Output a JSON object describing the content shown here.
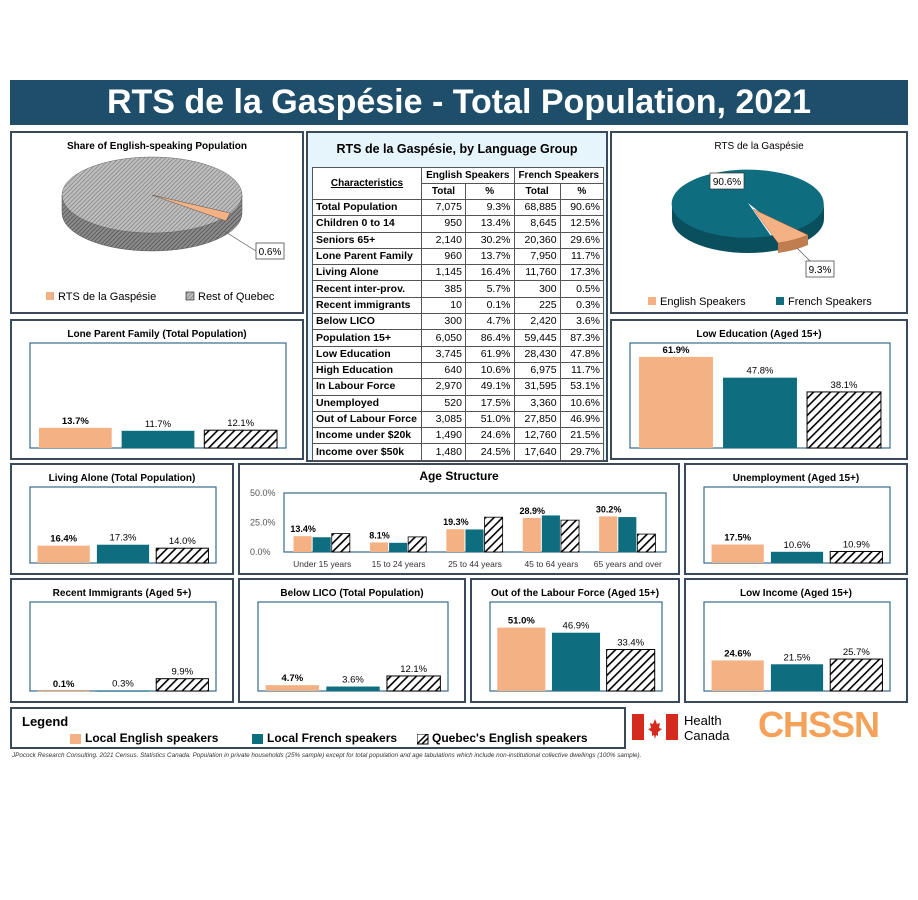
{
  "title": "RTS de la Gaspésie - Total Population, 2021",
  "colors": {
    "english": "#f4b183",
    "french": "#0e6e80",
    "quebec": "hatch",
    "banner": "#1f4e6b"
  },
  "pie_left": {
    "title": "Share of English-speaking Population",
    "label": "0.6%",
    "legend": [
      "RTS de la Gaspésie",
      "Rest of Quebec"
    ]
  },
  "pie_right": {
    "title": "RTS de la Gaspésie",
    "label_french": "90.6%",
    "label_english": "9.3%",
    "legend": [
      "English Speakers",
      "French Speakers"
    ]
  },
  "table": {
    "title": "RTS de la Gaspésie, by Language Group",
    "col_characteristics": "Characteristics",
    "col_english": "English Speakers",
    "col_french": "French Speakers",
    "col_total": "Total",
    "col_pct": "%",
    "rows": [
      [
        "Total Population",
        "7,075",
        "9.3%",
        "68,885",
        "90.6%"
      ],
      [
        "Children 0 to 14",
        "950",
        "13.4%",
        "8,645",
        "12.5%"
      ],
      [
        "Seniors 65+",
        "2,140",
        "30.2%",
        "20,360",
        "29.6%"
      ],
      [
        "Lone Parent Family",
        "960",
        "13.7%",
        "7,950",
        "11.7%"
      ],
      [
        "Living Alone",
        "1,145",
        "16.4%",
        "11,760",
        "17.3%"
      ],
      [
        "Recent inter-prov.",
        "385",
        "5.7%",
        "300",
        "0.5%"
      ],
      [
        "Recent immigrants",
        "10",
        "0.1%",
        "225",
        "0.3%"
      ],
      [
        "Below LICO",
        "300",
        "4.7%",
        "2,420",
        "3.6%"
      ],
      [
        "Population 15+",
        "6,050",
        "86.4%",
        "59,445",
        "87.3%"
      ],
      [
        "Low Education",
        "3,745",
        "61.9%",
        "28,430",
        "47.8%"
      ],
      [
        "High Education",
        "640",
        "10.6%",
        "6,975",
        "11.7%"
      ],
      [
        "In Labour Force",
        "2,970",
        "49.1%",
        "31,595",
        "53.1%"
      ],
      [
        "Unemployed",
        "520",
        "17.5%",
        "3,360",
        "10.6%"
      ],
      [
        "Out of Labour Force",
        "3,085",
        "51.0%",
        "27,850",
        "46.9%"
      ],
      [
        "Income under $20k",
        "1,490",
        "24.6%",
        "12,760",
        "21.5%"
      ],
      [
        "Income over $50k",
        "1,480",
        "24.5%",
        "17,640",
        "29.7%"
      ]
    ]
  },
  "age": {
    "title": "Age Structure",
    "ticks": [
      "50.0%",
      "25.0%",
      "0.0%"
    ]
  },
  "legend": {
    "title": "Legend",
    "items": [
      "Local English speakers",
      "Local French speakers",
      "Quebec's English speakers"
    ]
  },
  "logos": {
    "health_line1": "Health",
    "health_line2": "Canada",
    "chssn": "CHSSN"
  },
  "footnote": "JPocock Research Consulting. 2021 Census. Statistics Canada. Population in private households (25% sample) except for total population and age tabulations which include non-institutional collective dwellings (100% sample).",
  "chart_data": [
    {
      "type": "pie",
      "title": "Share of English-speaking Population",
      "categories": [
        "RTS de la Gaspésie",
        "Rest of Quebec"
      ],
      "values": [
        0.6,
        99.4
      ]
    },
    {
      "type": "pie",
      "title": "RTS de la Gaspésie",
      "categories": [
        "English Speakers",
        "French Speakers"
      ],
      "values": [
        9.3,
        90.6
      ]
    },
    {
      "type": "bar",
      "title": "Lone Parent Family (Total Population)",
      "series": [
        {
          "name": "Local English speakers",
          "values": [
            13.7
          ],
          "label": "13.7%"
        },
        {
          "name": "Local French speakers",
          "values": [
            11.7
          ],
          "label": "11.7%"
        },
        {
          "name": "Quebec's English speakers",
          "values": [
            12.1
          ],
          "label": "12.1%"
        }
      ],
      "ymax": 70
    },
    {
      "type": "bar",
      "title": "Low Education (Aged 15+)",
      "series": [
        {
          "name": "Local English speakers",
          "values": [
            61.9
          ],
          "label": "61.9%"
        },
        {
          "name": "Local French speakers",
          "values": [
            47.8
          ],
          "label": "47.8%"
        },
        {
          "name": "Quebec's English speakers",
          "values": [
            38.1
          ],
          "label": "38.1%"
        }
      ],
      "ymax": 70
    },
    {
      "type": "bar",
      "title": "Living Alone (Total Population)",
      "series": [
        {
          "name": "Local English speakers",
          "values": [
            16.4
          ],
          "label": "16.4%"
        },
        {
          "name": "Local French speakers",
          "values": [
            17.3
          ],
          "label": "17.3%"
        },
        {
          "name": "Quebec's English speakers",
          "values": [
            14.0
          ],
          "label": "14.0%"
        }
      ],
      "ymax": 70
    },
    {
      "type": "bar",
      "title": "Age Structure",
      "categories": [
        "Under 15 years",
        "15 to 24 years",
        "25 to 44 years",
        "45 to 64 years",
        "65 years and over"
      ],
      "series": [
        {
          "name": "Local English speakers",
          "values": [
            13.4,
            8.1,
            19.3,
            28.9,
            30.2
          ],
          "labels": [
            "13.4%",
            "8.1%",
            "19.3%",
            "28.9%",
            "30.2%"
          ]
        },
        {
          "name": "Local French speakers",
          "values": [
            12.5,
            7.8,
            19.1,
            31.0,
            29.6
          ]
        },
        {
          "name": "Quebec's English speakers",
          "values": [
            15.6,
            12.8,
            29.5,
            27.0,
            15.2
          ]
        }
      ],
      "ylim": [
        0,
        50
      ]
    },
    {
      "type": "bar",
      "title": "Unemployment (Aged 15+)",
      "series": [
        {
          "name": "Local English speakers",
          "values": [
            17.5
          ],
          "label": "17.5%"
        },
        {
          "name": "Local French speakers",
          "values": [
            10.6
          ],
          "label": "10.6%"
        },
        {
          "name": "Quebec's English speakers",
          "values": [
            10.9
          ],
          "label": "10.9%"
        }
      ],
      "ymax": 70
    },
    {
      "type": "bar",
      "title": "Recent Immigrants (Aged 5+)",
      "series": [
        {
          "name": "Local English speakers",
          "values": [
            0.1
          ],
          "label": "0.1%"
        },
        {
          "name": "Local French speakers",
          "values": [
            0.3
          ],
          "label": "0.3%"
        },
        {
          "name": "Quebec's English speakers",
          "values": [
            9.9
          ],
          "label": "9.9%"
        }
      ],
      "ymax": 70
    },
    {
      "type": "bar",
      "title": "Below LICO (Total Population)",
      "series": [
        {
          "name": "Local English speakers",
          "values": [
            4.7
          ],
          "label": "4.7%"
        },
        {
          "name": "Local French speakers",
          "values": [
            3.6
          ],
          "label": "3.6%"
        },
        {
          "name": "Quebec's English speakers",
          "values": [
            12.1
          ],
          "label": "12.1%"
        }
      ],
      "ymax": 70
    },
    {
      "type": "bar",
      "title": "Out of the Labour Force (Aged 15+)",
      "series": [
        {
          "name": "Local English speakers",
          "values": [
            51.0
          ],
          "label": "51.0%"
        },
        {
          "name": "Local French speakers",
          "values": [
            46.9
          ],
          "label": "46.9%"
        },
        {
          "name": "Quebec's English speakers",
          "values": [
            33.4
          ],
          "label": "33.4%"
        }
      ],
      "ymax": 70
    },
    {
      "type": "bar",
      "title": "Low Income (Aged 15+)",
      "series": [
        {
          "name": "Local English speakers",
          "values": [
            24.6
          ],
          "label": "24.6%"
        },
        {
          "name": "Local French speakers",
          "values": [
            21.5
          ],
          "label": "21.5%"
        },
        {
          "name": "Quebec's English speakers",
          "values": [
            25.7
          ],
          "label": "25.7%"
        }
      ],
      "ymax": 70
    }
  ]
}
